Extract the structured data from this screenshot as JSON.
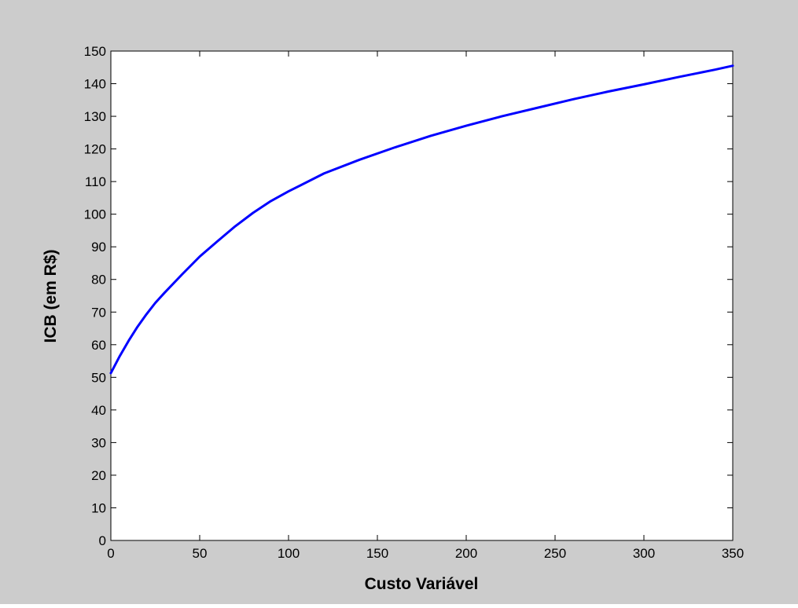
{
  "chart_data": {
    "type": "line",
    "title": "",
    "xlabel": "Custo Variável",
    "ylabel": "ICB (em R$)",
    "xlim": [
      0,
      350
    ],
    "ylim": [
      0,
      150
    ],
    "xticks": [
      0,
      50,
      100,
      150,
      200,
      250,
      300,
      350
    ],
    "yticks": [
      0,
      10,
      20,
      30,
      40,
      50,
      60,
      70,
      80,
      90,
      100,
      110,
      120,
      130,
      140,
      150
    ],
    "grid": false,
    "legend": "none",
    "series": [
      {
        "color": "#0000ff",
        "x": [
          0,
          5,
          10,
          15,
          20,
          25,
          30,
          40,
          50,
          60,
          70,
          80,
          90,
          100,
          120,
          140,
          160,
          180,
          200,
          220,
          240,
          260,
          280,
          300,
          320,
          340,
          350
        ],
        "y": [
          51.3,
          56.5,
          61.2,
          65.5,
          69.3,
          72.8,
          75.8,
          81.5,
          87.0,
          91.7,
          96.3,
          100.4,
          104.0,
          107.0,
          112.5,
          116.7,
          120.5,
          124.0,
          127.1,
          130.0,
          132.6,
          135.2,
          137.6,
          139.8,
          142.1,
          144.3,
          145.5
        ]
      }
    ]
  },
  "colors": {
    "figure_background": "#cccccc",
    "axes_background": "#ffffff",
    "line": "#0000ff",
    "axes": "#000000"
  }
}
